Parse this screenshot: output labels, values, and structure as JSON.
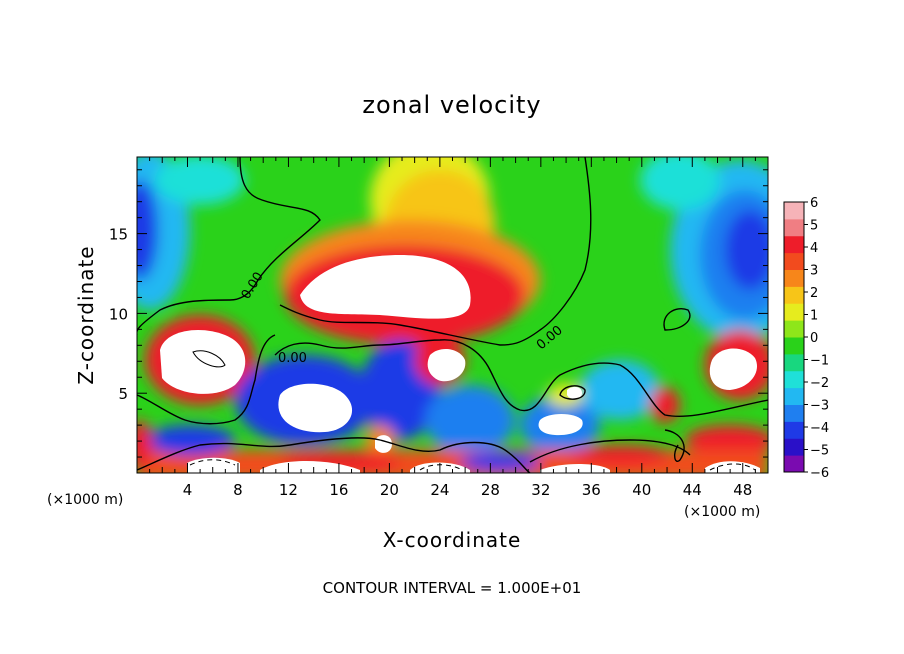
{
  "chart_data": {
    "type": "heatmap",
    "title": "zonal velocity",
    "xlabel": "X-coordinate",
    "ylabel": "Z-coordinate",
    "x_unit_left": "(×1000 m)",
    "x_unit_right": "(×1000 m)",
    "xlim": [
      0,
      50
    ],
    "ylim": [
      0,
      19.8
    ],
    "x_ticks": [
      4,
      8,
      12,
      16,
      20,
      24,
      28,
      32,
      36,
      40,
      44,
      48
    ],
    "y_ticks": [
      5,
      10,
      15
    ],
    "colorbar": {
      "min": -6,
      "max": 6,
      "ticks": [
        6,
        5,
        4,
        3,
        2,
        1,
        0,
        -1,
        -2,
        -3,
        -4,
        -5,
        -6
      ],
      "colors": [
        "#7a0bb0",
        "#2a10c8",
        "#1f3ae6",
        "#1f7ff0",
        "#22b8f2",
        "#1fe0d8",
        "#18d77f",
        "#2ad21a",
        "#8ee61a",
        "#e6ec1e",
        "#f7c518",
        "#f7861a",
        "#f24b1e",
        "#ee1d2a",
        "#f07e83",
        "#f6b3b8"
      ]
    },
    "contour_labels": [
      "0.00",
      "0.00",
      "0.00"
    ],
    "footer": "CONTOUR INTERVAL = 1.000E+01"
  }
}
